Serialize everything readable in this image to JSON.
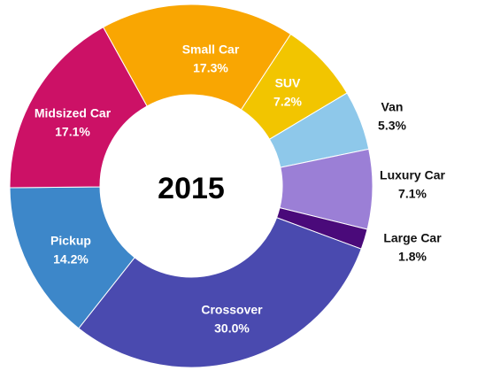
{
  "chart_data": {
    "type": "donut",
    "center_text": "2015",
    "categories": [
      "Small Car",
      "SUV",
      "Van",
      "Luxury Car",
      "Large Car",
      "Crossover",
      "Pickup",
      "Midsized Car"
    ],
    "values": [
      17.3,
      7.2,
      5.3,
      7.1,
      1.8,
      30.0,
      14.2,
      17.1
    ],
    "value_labels": [
      "17.3%",
      "7.2%",
      "5.3%",
      "7.1%",
      "1.8%",
      "30.0%",
      "14.2%",
      "17.1%"
    ],
    "colors": [
      "#f9a602",
      "#f2c500",
      "#8ec8ea",
      "#9b7fd6",
      "#4a0a7a",
      "#4a4aaf",
      "#3d87c9",
      "#cc1166"
    ]
  }
}
